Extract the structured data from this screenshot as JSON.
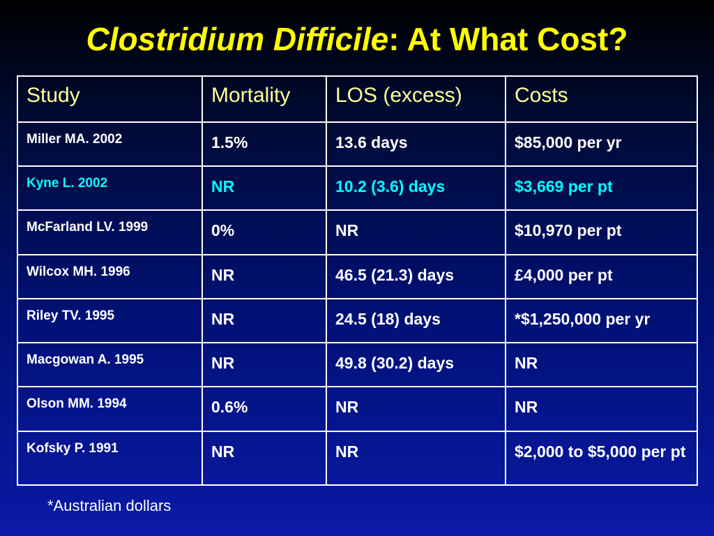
{
  "title": {
    "italic": "Clostridium Difficile",
    "rest": ": At What Cost?"
  },
  "table": {
    "headers": [
      "Study",
      "Mortality",
      "LOS (excess)",
      "Costs"
    ],
    "rows": [
      [
        "Miller MA. 2002",
        "1.5%",
        "13.6 days",
        "$85,000 per yr"
      ],
      [
        "Kyne L. 2002",
        "NR",
        "10.2 (3.6) days",
        "$3,669 per pt"
      ],
      [
        "McFarland LV. 1999",
        "0%",
        "NR",
        "$10,970 per pt"
      ],
      [
        "Wilcox MH. 1996",
        "NR",
        "46.5 (21.3) days",
        "£4,000 per pt"
      ],
      [
        "Riley TV. 1995",
        "NR",
        "24.5 (18) days",
        "*$1,250,000 per yr"
      ],
      [
        "Macgowan A. 1995",
        "NR",
        "49.8 (30.2) days",
        "NR"
      ],
      [
        "Olson MM. 1994",
        "0.6%",
        "NR",
        "NR"
      ],
      [
        "Kofsky P. 1991",
        "NR",
        "NR",
        "$2,000 to $5,000 per pt"
      ]
    ],
    "highlight_row_color": "#00ffff",
    "header_color": "#ffff99"
  },
  "footnote": "*Australian dollars",
  "colors": {
    "title": "#ffff00",
    "text": "#ffffff"
  }
}
